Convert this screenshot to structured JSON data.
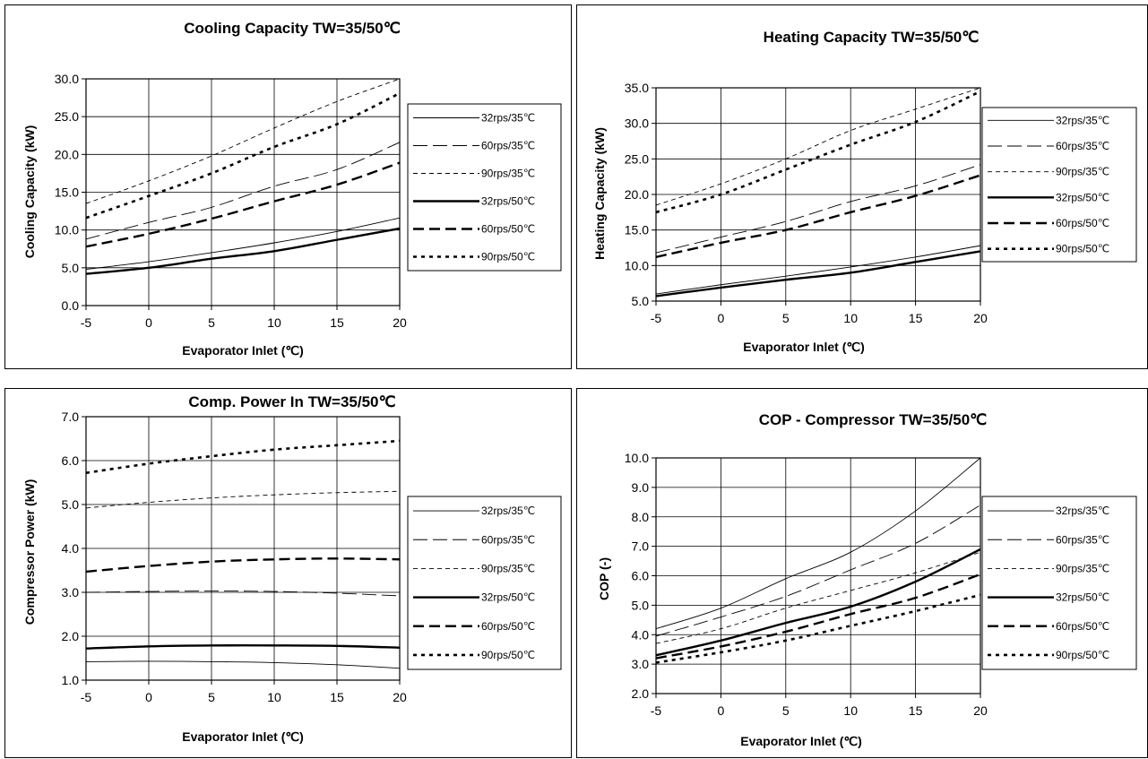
{
  "chart_data": [
    {
      "type": "line",
      "title": "Cooling Capacity TW=35/50℃",
      "xlabel": "Evaporator Inlet (℃)",
      "ylabel": "Cooling Capacity (kW)",
      "xlim": [
        -5,
        20
      ],
      "ylim": [
        0,
        30
      ],
      "xticks": [
        -5,
        0,
        5,
        10,
        15,
        20
      ],
      "yticks": [
        0,
        5,
        10,
        15,
        20,
        25,
        30
      ],
      "ytick_labels": [
        "0.0",
        "5.0",
        "10.0",
        "15.0",
        "20.0",
        "25.0",
        "30.0"
      ],
      "grid": true,
      "legend_position": "right",
      "x": [
        -5,
        0,
        5,
        10,
        15,
        20
      ],
      "series": [
        {
          "name": "32rps/35℃",
          "style": "thin-solid",
          "values": [
            4.8,
            5.8,
            7.0,
            8.3,
            9.8,
            11.6
          ]
        },
        {
          "name": "60rps/35℃",
          "style": "thin-longdash",
          "values": [
            8.8,
            11.0,
            13.0,
            15.8,
            18.0,
            21.6
          ]
        },
        {
          "name": "90rps/35℃",
          "style": "thin-dash",
          "values": [
            13.5,
            16.5,
            19.8,
            23.5,
            27.0,
            30.0
          ]
        },
        {
          "name": "32rps/50℃",
          "style": "thick-solid",
          "values": [
            4.2,
            5.0,
            6.2,
            7.2,
            8.7,
            10.2
          ]
        },
        {
          "name": "60rps/50℃",
          "style": "thick-dash",
          "values": [
            7.8,
            9.5,
            11.5,
            13.8,
            16.0,
            18.9
          ]
        },
        {
          "name": "90rps/50℃",
          "style": "thick-dot",
          "values": [
            11.6,
            14.5,
            17.5,
            21.0,
            24.0,
            28.1
          ]
        }
      ]
    },
    {
      "type": "line",
      "title": "Heating Capacity TW=35/50℃",
      "xlabel": "Evaporator Inlet (℃)",
      "ylabel": "Heating Capacity (kW)",
      "xlim": [
        -5,
        20
      ],
      "ylim": [
        5,
        35
      ],
      "xticks": [
        -5,
        0,
        5,
        10,
        15,
        20
      ],
      "yticks": [
        5,
        10,
        15,
        20,
        25,
        30,
        35
      ],
      "ytick_labels": [
        "5.0",
        "10.0",
        "15.0",
        "20.0",
        "25.0",
        "30.0",
        "35.0"
      ],
      "grid": true,
      "legend_position": "right",
      "x": [
        -5,
        0,
        5,
        10,
        15,
        20
      ],
      "series": [
        {
          "name": "32rps/35℃",
          "style": "thin-solid",
          "values": [
            6.0,
            7.3,
            8.5,
            9.8,
            11.2,
            12.8
          ]
        },
        {
          "name": "60rps/35℃",
          "style": "thin-longdash",
          "values": [
            11.8,
            14.0,
            16.2,
            19.0,
            21.2,
            24.2
          ]
        },
        {
          "name": "90rps/35℃",
          "style": "thin-dash",
          "values": [
            18.5,
            21.5,
            25.0,
            29.0,
            32.0,
            35.0
          ]
        },
        {
          "name": "32rps/50℃",
          "style": "thick-solid",
          "values": [
            5.7,
            6.9,
            8.0,
            9.0,
            10.5,
            12.0
          ]
        },
        {
          "name": "60rps/50℃",
          "style": "thick-dash",
          "values": [
            11.2,
            13.2,
            15.0,
            17.5,
            19.8,
            22.7
          ]
        },
        {
          "name": "90rps/50℃",
          "style": "thick-dot",
          "values": [
            17.5,
            20.0,
            23.5,
            27.0,
            30.2,
            34.5
          ]
        }
      ]
    },
    {
      "type": "line",
      "title": "Comp. Power In TW=35/50℃",
      "xlabel": "Evaporator Inlet (℃)",
      "ylabel": "Compressor Power (kW)",
      "xlim": [
        -5,
        20
      ],
      "ylim": [
        1,
        7
      ],
      "xticks": [
        -5,
        0,
        5,
        10,
        15,
        20
      ],
      "yticks": [
        1,
        2,
        3,
        4,
        5,
        6,
        7
      ],
      "ytick_labels": [
        "1.0",
        "2.0",
        "3.0",
        "4.0",
        "5.0",
        "6.0",
        "7.0"
      ],
      "grid": true,
      "legend_position": "right",
      "x": [
        -5,
        0,
        5,
        10,
        15,
        20
      ],
      "series": [
        {
          "name": "32rps/35℃",
          "style": "thin-solid",
          "values": [
            1.42,
            1.43,
            1.42,
            1.4,
            1.35,
            1.27
          ]
        },
        {
          "name": "60rps/35℃",
          "style": "thin-longdash",
          "values": [
            3.0,
            3.02,
            3.03,
            3.02,
            2.98,
            2.92
          ]
        },
        {
          "name": "90rps/35℃",
          "style": "thin-dash",
          "values": [
            4.92,
            5.05,
            5.15,
            5.22,
            5.27,
            5.3
          ]
        },
        {
          "name": "32rps/50℃",
          "style": "thick-solid",
          "values": [
            1.72,
            1.77,
            1.79,
            1.79,
            1.78,
            1.74
          ]
        },
        {
          "name": "60rps/50℃",
          "style": "thick-dash",
          "values": [
            3.47,
            3.6,
            3.7,
            3.75,
            3.77,
            3.75
          ]
        },
        {
          "name": "90rps/50℃",
          "style": "thick-dot",
          "values": [
            5.72,
            5.93,
            6.1,
            6.25,
            6.35,
            6.45
          ]
        }
      ]
    },
    {
      "type": "line",
      "title": "COP - Compressor TW=35/50℃",
      "xlabel": "Evaporator Inlet (℃)",
      "ylabel": "COP (-)",
      "xlim": [
        -5,
        20
      ],
      "ylim": [
        2,
        10
      ],
      "xticks": [
        -5,
        0,
        5,
        10,
        15,
        20
      ],
      "yticks": [
        2,
        3,
        4,
        5,
        6,
        7,
        8,
        9,
        10
      ],
      "ytick_labels": [
        "2.0",
        "3.0",
        "4.0",
        "5.0",
        "6.0",
        "7.0",
        "8.0",
        "9.0",
        "10.0"
      ],
      "grid": true,
      "legend_position": "right",
      "x": [
        -5,
        0,
        5,
        10,
        15,
        20
      ],
      "series": [
        {
          "name": "32rps/35℃",
          "style": "thin-solid",
          "values": [
            4.2,
            4.9,
            5.9,
            6.8,
            8.2,
            10.0
          ]
        },
        {
          "name": "60rps/35℃",
          "style": "thin-longdash",
          "values": [
            3.95,
            4.6,
            5.3,
            6.2,
            7.1,
            8.4
          ]
        },
        {
          "name": "90rps/35℃",
          "style": "thin-dash",
          "values": [
            3.7,
            4.2,
            4.9,
            5.5,
            6.1,
            6.8
          ]
        },
        {
          "name": "32rps/50℃",
          "style": "thick-solid",
          "values": [
            3.3,
            3.8,
            4.4,
            4.95,
            5.8,
            6.9
          ]
        },
        {
          "name": "60rps/50℃",
          "style": "thick-dash",
          "values": [
            3.2,
            3.6,
            4.1,
            4.7,
            5.25,
            6.05
          ]
        },
        {
          "name": "90rps/50℃",
          "style": "thick-dot",
          "values": [
            3.05,
            3.4,
            3.8,
            4.3,
            4.8,
            5.35
          ]
        }
      ]
    }
  ]
}
